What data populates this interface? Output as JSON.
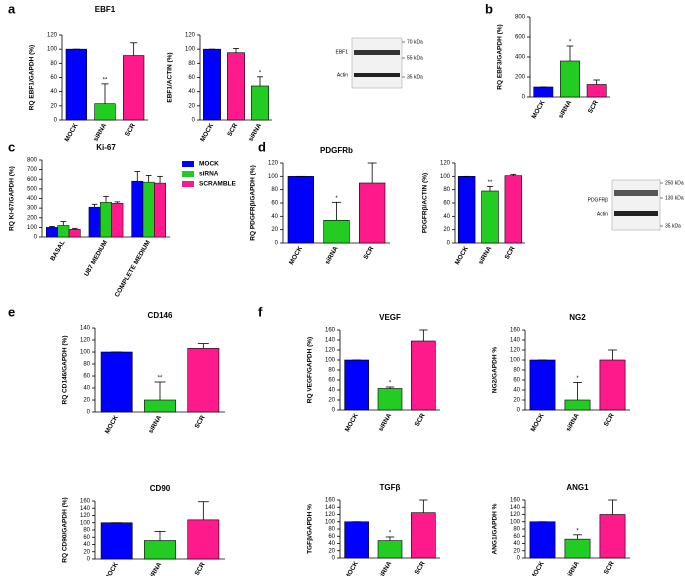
{
  "chart_data": [
    {
      "type": "bar",
      "panel": "a",
      "title": "EBF1",
      "ylabel": "RQ EBF1/GAPDH (%)",
      "categories": [
        "MOCK",
        "siRNA",
        "SCR"
      ],
      "values": [
        100,
        23,
        91
      ],
      "errors": [
        0,
        28,
        18
      ],
      "colors": [
        "#0000ff",
        "#22cc22",
        "#ff1a8c"
      ],
      "ylim": [
        0,
        120
      ],
      "yticks": [
        0,
        20,
        40,
        60,
        80,
        100,
        120
      ],
      "annotations": [
        {
          "category": "siRNA",
          "text": "**"
        }
      ]
    },
    {
      "type": "bar",
      "ylabel": "EBF1/ACTIN (%)",
      "categories": [
        "MOCK",
        "SCR",
        "siRNA"
      ],
      "values": [
        100,
        95,
        48
      ],
      "errors": [
        0,
        6,
        13
      ],
      "colors": [
        "#0000ff",
        "#ff1a8c",
        "#22cc22"
      ],
      "ylim": [
        0,
        120
      ],
      "yticks": [
        0,
        20,
        40,
        60,
        80,
        100,
        120
      ],
      "annotations": [
        {
          "category": "siRNA",
          "text": "*"
        }
      ]
    },
    {
      "type": "bar",
      "panel": "b",
      "ylabel": "RQ EBF3/GAPDH (%)",
      "categories": [
        "MOCK",
        "siRNA",
        "SCR"
      ],
      "values": [
        100,
        360,
        125
      ],
      "errors": [
        0,
        150,
        45
      ],
      "colors": [
        "#0000ff",
        "#22cc22",
        "#ff1a8c"
      ],
      "ylim": [
        0,
        800
      ],
      "yticks": [
        0,
        200,
        400,
        600,
        800
      ],
      "annotations": [
        {
          "category": "siRNA",
          "text": "*"
        }
      ]
    },
    {
      "type": "grouped_bar",
      "panel": "c",
      "title": "Ki-67",
      "ylabel": "RQ Ki-67/GAPDH (%)",
      "categories": [
        "BASAL",
        "U87 MEDIUM",
        "COMPLETE MEDIUM"
      ],
      "series": [
        {
          "name": "MOCK",
          "color": "#0000ff",
          "values": [
            100,
            310,
            580
          ],
          "errors": [
            10,
            30,
            100
          ]
        },
        {
          "name": "siRNA",
          "color": "#22cc22",
          "values": [
            120,
            360,
            570
          ],
          "errors": [
            40,
            60,
            70
          ]
        },
        {
          "name": "SCRAMBLE",
          "color": "#ff1a8c",
          "values": [
            80,
            350,
            560
          ],
          "errors": [
            10,
            15,
            70
          ]
        }
      ],
      "ylim": [
        0,
        800
      ],
      "yticks": [
        0,
        100,
        200,
        300,
        400,
        500,
        600,
        700,
        800
      ],
      "legend": "right"
    },
    {
      "type": "bar",
      "panel": "d",
      "title": "PDGFRb",
      "ylabel": "RQ PDGFRβ/GAPDH (%)",
      "categories": [
        "MOCK",
        "siRNA",
        "SCR"
      ],
      "values": [
        100,
        34,
        90
      ],
      "errors": [
        0,
        27,
        30
      ],
      "colors": [
        "#0000ff",
        "#22cc22",
        "#ff1a8c"
      ],
      "ylim": [
        0,
        120
      ],
      "yticks": [
        0,
        20,
        40,
        60,
        80,
        100,
        120
      ],
      "annotations": [
        {
          "category": "siRNA",
          "text": "*"
        }
      ]
    },
    {
      "type": "bar",
      "ylabel": "PDGFRβ/ACTIN (%)",
      "categories": [
        "MOCK",
        "siRNA",
        "SCR"
      ],
      "values": [
        100,
        78,
        101
      ],
      "errors": [
        0,
        7,
        2
      ],
      "colors": [
        "#0000ff",
        "#22cc22",
        "#ff1a8c"
      ],
      "ylim": [
        0,
        120
      ],
      "yticks": [
        0,
        20,
        40,
        60,
        80,
        100,
        120
      ],
      "annotations": [
        {
          "category": "siRNA",
          "text": "**"
        }
      ]
    },
    {
      "type": "bar",
      "panel": "e",
      "title": "CD146",
      "ylabel": "RQ CD146/GAPDH (%)",
      "categories": [
        "MOCK",
        "siRNA",
        "SCR"
      ],
      "values": [
        100,
        20,
        106
      ],
      "errors": [
        0,
        30,
        8
      ],
      "colors": [
        "#0000ff",
        "#22cc22",
        "#ff1a8c"
      ],
      "ylim": [
        0,
        140
      ],
      "yticks": [
        0,
        20,
        40,
        60,
        80,
        100,
        120,
        140
      ],
      "annotations": [
        {
          "category": "siRNA",
          "text": "**"
        }
      ]
    },
    {
      "type": "bar",
      "title": "CD90",
      "ylabel": "RQ CD90/GAPDH (%)",
      "categories": [
        "MOCK",
        "siRNA",
        "SCR"
      ],
      "values": [
        100,
        51,
        108
      ],
      "errors": [
        0,
        25,
        50
      ],
      "colors": [
        "#0000ff",
        "#22cc22",
        "#ff1a8c"
      ],
      "ylim": [
        0,
        160
      ],
      "yticks": [
        0,
        20,
        40,
        60,
        80,
        100,
        120,
        140,
        160
      ]
    },
    {
      "type": "bar",
      "panel": "f",
      "title": "VEGF",
      "ylabel": "RQ VEGF/GAPDH (%)",
      "categories": [
        "MOCK",
        "siRNA",
        "SCR"
      ],
      "values": [
        100,
        43,
        138
      ],
      "errors": [
        0,
        3,
        22
      ],
      "colors": [
        "#0000ff",
        "#22cc22",
        "#ff1a8c"
      ],
      "ylim": [
        0,
        160
      ],
      "yticks": [
        0,
        20,
        40,
        60,
        80,
        100,
        120,
        140,
        160
      ],
      "annotations": [
        {
          "category": "siRNA",
          "text": "*"
        }
      ]
    },
    {
      "type": "bar",
      "title": "NG2",
      "ylabel": "NG2/GAPDH %",
      "categories": [
        "MOCK",
        "siRNA",
        "SCR"
      ],
      "values": [
        100,
        20,
        100
      ],
      "errors": [
        0,
        35,
        20
      ],
      "colors": [
        "#0000ff",
        "#22cc22",
        "#ff1a8c"
      ],
      "ylim": [
        0,
        160
      ],
      "yticks": [
        0,
        20,
        40,
        60,
        80,
        100,
        120,
        140,
        160
      ],
      "annotations": [
        {
          "category": "siRNA",
          "text": "*"
        }
      ]
    },
    {
      "type": "bar",
      "title": "TGFβ",
      "ylabel": "TGFβ/GAPDH %",
      "categories": [
        "MOCK",
        "siRNA",
        "SCR"
      ],
      "values": [
        100,
        48,
        125
      ],
      "errors": [
        0,
        10,
        35
      ],
      "colors": [
        "#0000ff",
        "#22cc22",
        "#ff1a8c"
      ],
      "ylim": [
        0,
        160
      ],
      "yticks": [
        0,
        20,
        40,
        60,
        80,
        100,
        120,
        140,
        160
      ],
      "annotations": [
        {
          "category": "siRNA",
          "text": "*"
        }
      ]
    },
    {
      "type": "bar",
      "title": "ANG1",
      "ylabel": "ANG1/GAPDH %",
      "categories": [
        "MOCK",
        "siRNA",
        "SCR"
      ],
      "values": [
        100,
        52,
        120
      ],
      "errors": [
        0,
        12,
        40
      ],
      "colors": [
        "#0000ff",
        "#22cc22",
        "#ff1a8c"
      ],
      "ylim": [
        0,
        160
      ],
      "yticks": [
        0,
        20,
        40,
        60,
        80,
        100,
        120,
        140,
        160
      ],
      "annotations": [
        {
          "category": "siRNA",
          "text": "*"
        }
      ]
    }
  ],
  "blots": [
    {
      "labels": [
        "EBF1",
        "Actin"
      ],
      "markers": [
        "70 kDa",
        "55 kDa",
        "35 kDa"
      ]
    },
    {
      "labels": [
        "PDGFRβ",
        "Actin"
      ],
      "markers": [
        "250 kDa",
        "130 kDa",
        "35 kDa"
      ]
    }
  ]
}
